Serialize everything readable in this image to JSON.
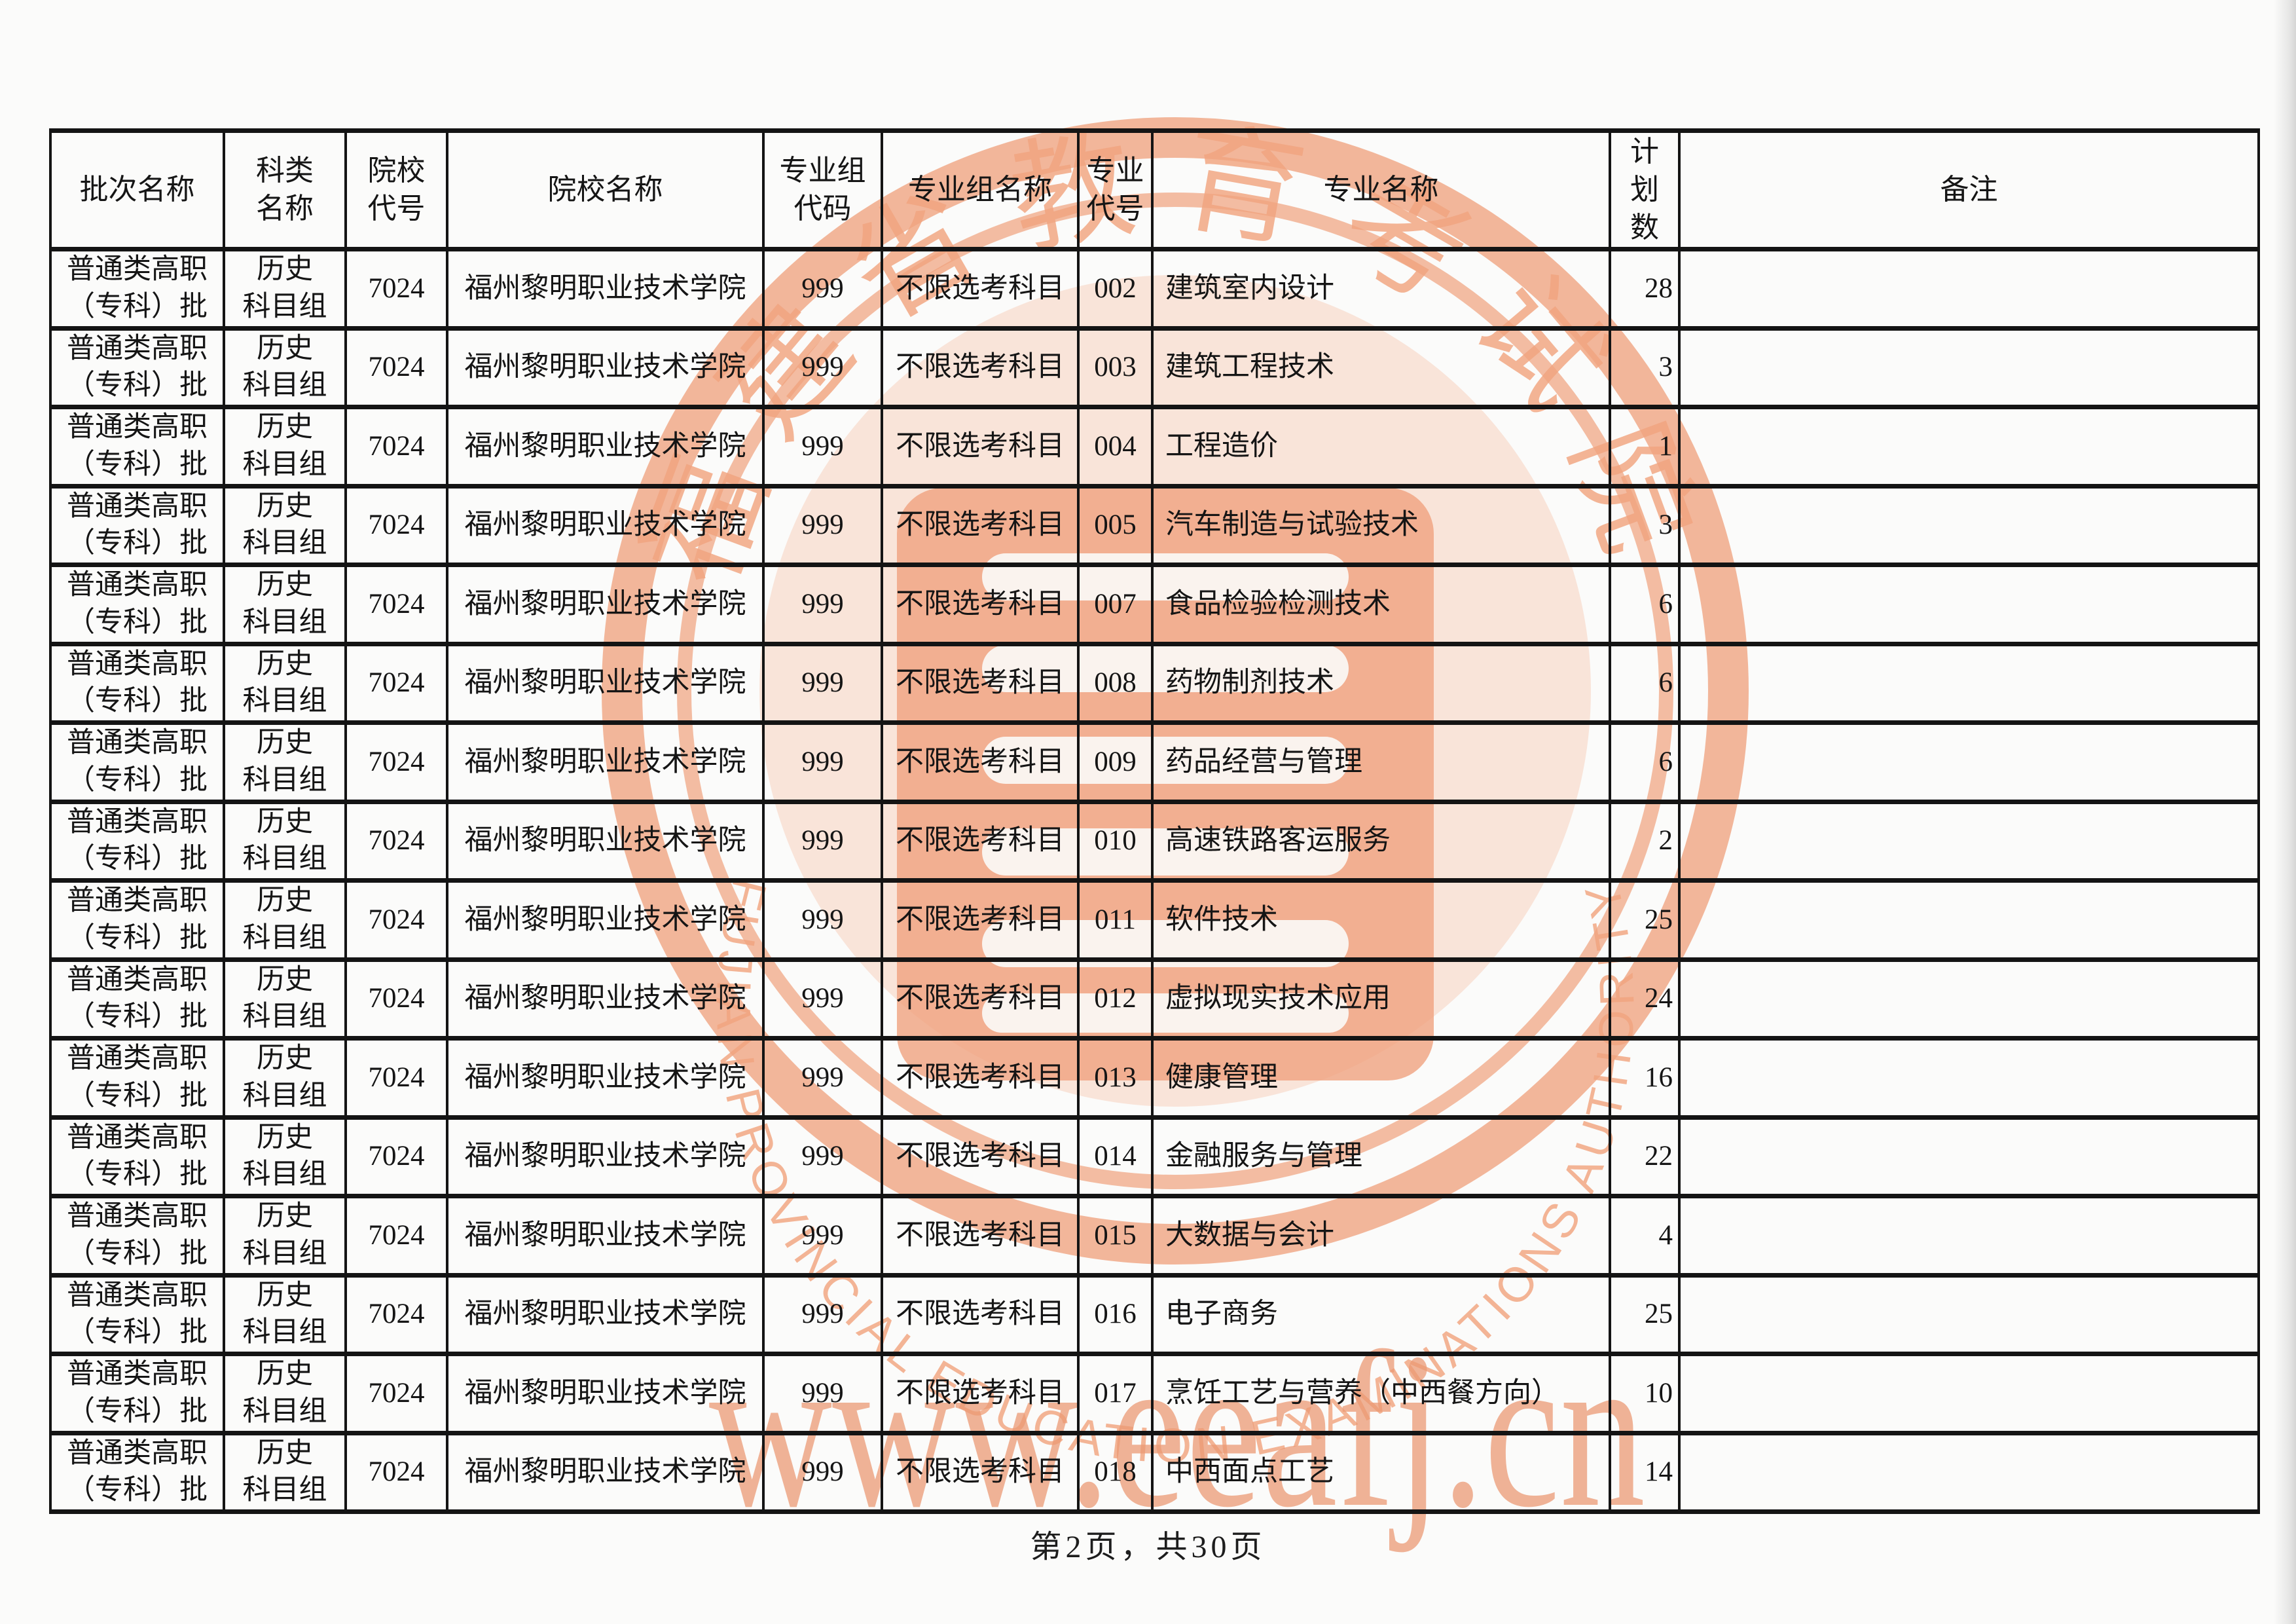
{
  "page": {
    "footer": "第2页，共30页"
  },
  "table": {
    "headers": [
      "批次名称",
      "科类\n名称",
      "院校\n代号",
      "院校名称",
      "专业组\n代码",
      "专业组名称",
      "专业\n代号",
      "专业名称",
      "计划\n数",
      "备注"
    ],
    "common": {
      "batch_name": "普通类高职\n（专科）批",
      "subject_group": "历史\n科目组",
      "college_code": "7024",
      "college_name": "福州黎明职业技术学院",
      "major_group_code": "999",
      "major_group_name": "不限选考科目"
    },
    "rows": [
      {
        "major_code": "002",
        "major_name": "建筑室内设计",
        "plan_count": "28",
        "remark": ""
      },
      {
        "major_code": "003",
        "major_name": "建筑工程技术",
        "plan_count": "3",
        "remark": ""
      },
      {
        "major_code": "004",
        "major_name": "工程造价",
        "plan_count": "1",
        "remark": ""
      },
      {
        "major_code": "005",
        "major_name": "汽车制造与试验技术",
        "plan_count": "3",
        "remark": ""
      },
      {
        "major_code": "007",
        "major_name": "食品检验检测技术",
        "plan_count": "6",
        "remark": ""
      },
      {
        "major_code": "008",
        "major_name": "药物制剂技术",
        "plan_count": "6",
        "remark": ""
      },
      {
        "major_code": "009",
        "major_name": "药品经营与管理",
        "plan_count": "6",
        "remark": ""
      },
      {
        "major_code": "010",
        "major_name": "高速铁路客运服务",
        "plan_count": "2",
        "remark": ""
      },
      {
        "major_code": "011",
        "major_name": "软件技术",
        "plan_count": "25",
        "remark": ""
      },
      {
        "major_code": "012",
        "major_name": "虚拟现实技术应用",
        "plan_count": "24",
        "remark": ""
      },
      {
        "major_code": "013",
        "major_name": "健康管理",
        "plan_count": "16",
        "remark": ""
      },
      {
        "major_code": "014",
        "major_name": "金融服务与管理",
        "plan_count": "22",
        "remark": ""
      },
      {
        "major_code": "015",
        "major_name": "大数据与会计",
        "plan_count": "4",
        "remark": ""
      },
      {
        "major_code": "016",
        "major_name": "电子商务",
        "plan_count": "25",
        "remark": ""
      },
      {
        "major_code": "017",
        "major_name": "烹饪工艺与营养（中西餐方向）",
        "plan_count": "10",
        "remark": ""
      },
      {
        "major_code": "018",
        "major_name": "中西面点工艺",
        "plan_count": "14",
        "remark": ""
      }
    ]
  },
  "watermark": {
    "seal_top_text": "福建省教育考试院",
    "seal_bottom_text": "FUJIAN PROVINCIAL EDUCATION EXAMINATIONS AUTHORITY",
    "url_text": "www.eeafj.cn",
    "color_hex": "#f0a37f"
  }
}
